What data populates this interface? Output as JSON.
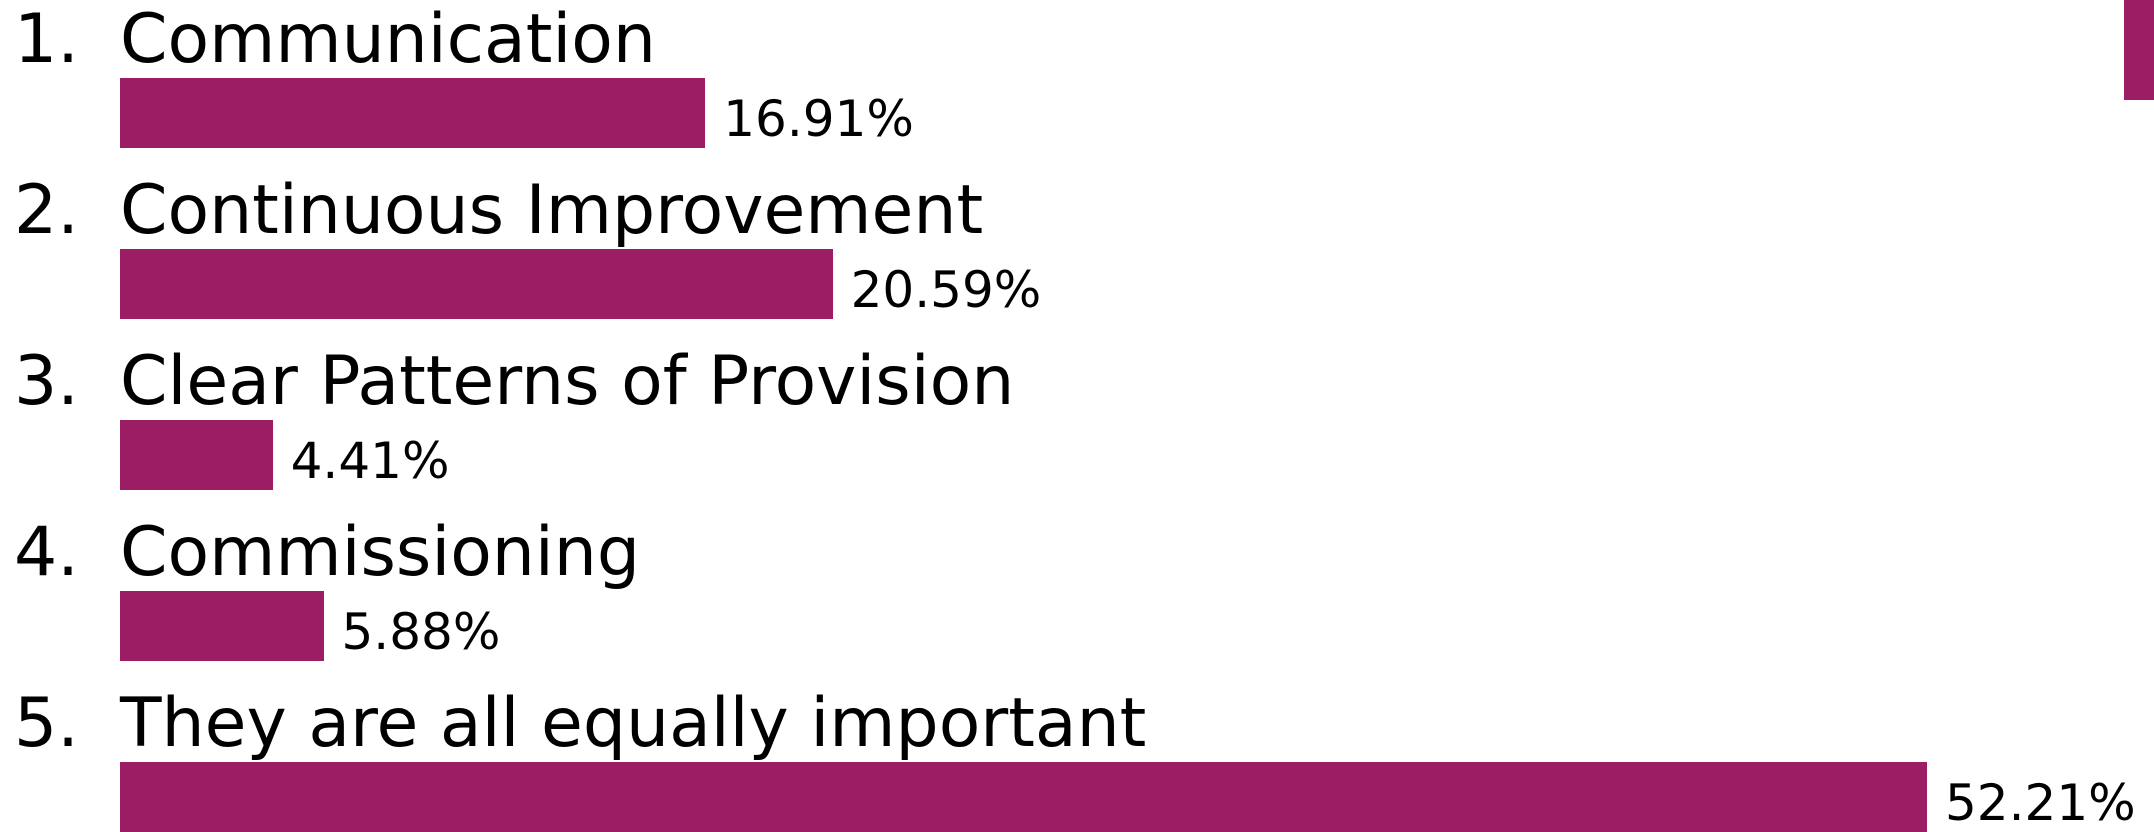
{
  "chart_data": {
    "type": "bar",
    "orientation": "horizontal",
    "categories": [
      "Communication",
      "Continuous Improvement",
      "Clear Patterns of Provision",
      "Commissioning",
      "They are all equally important"
    ],
    "numbers": [
      "1.",
      "2.",
      "3.",
      "4.",
      "5."
    ],
    "values": [
      16.91,
      20.59,
      4.41,
      5.88,
      52.21
    ],
    "value_labels": [
      "16.91%",
      "20.59%",
      "4.41%",
      "5.88%",
      "52.21%"
    ],
    "title": "",
    "xlabel": "",
    "ylabel": "",
    "xlim": [
      0,
      100
    ],
    "grid": false,
    "legend": "none",
    "bar_color": "#9B1D63"
  },
  "accent_tab_color": "#9B1D63"
}
